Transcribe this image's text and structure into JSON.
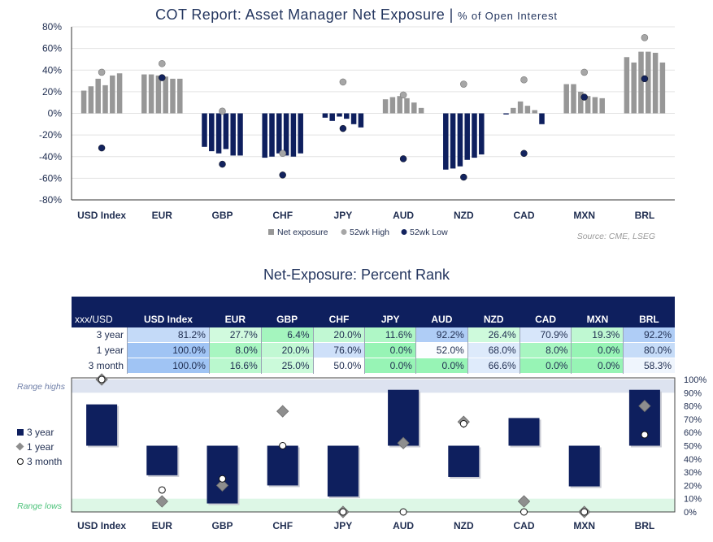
{
  "titles": {
    "chart1_main": "COT Report: Asset Manager Net Exposure |",
    "chart1_sub": "% of Open Interest",
    "chart2": "Net-Exposure: Percent Rank"
  },
  "colors": {
    "net_exposure": "#979797",
    "navy": "#0e1f5e",
    "high_marker": "#a6a6a6",
    "low_marker": "#13235e",
    "range_highs_band": "#dde3f0",
    "range_lows_band": "#ddf7e6"
  },
  "chart_data": [
    {
      "type": "bar",
      "title": "COT Report: Asset Manager Net Exposure | % of Open Interest",
      "ylabel": "",
      "ylim": [
        -80,
        80
      ],
      "yticks": [
        "80%",
        "60%",
        "40%",
        "20%",
        "0%",
        "-20%",
        "-40%",
        "-60%",
        "-80%"
      ],
      "grid": true,
      "categories": [
        "USD Index",
        "EUR",
        "GBP",
        "CHF",
        "JPY",
        "AUD",
        "NZD",
        "CAD",
        "MXN",
        "BRL"
      ],
      "series": [
        {
          "name": "Net exposure",
          "values": [
            [
              21,
              25,
              32,
              26,
              35,
              37
            ],
            [
              36,
              36,
              35,
              34,
              32,
              32
            ],
            [
              -31,
              -35,
              -37,
              -33,
              -39,
              -39
            ],
            [
              -41,
              -40,
              -37,
              -39,
              -40,
              -37
            ],
            [
              -4,
              -7,
              -3,
              -5,
              -10,
              -13
            ],
            [
              13,
              15,
              16,
              14,
              10,
              5
            ],
            [
              -52,
              -51,
              -49,
              -43,
              -41,
              -38
            ],
            [
              -1,
              5,
              11,
              7,
              3,
              -10
            ],
            [
              27,
              27,
              20,
              16,
              15,
              14
            ],
            [
              52,
              47,
              57,
              57,
              56,
              47
            ]
          ]
        },
        {
          "name": "52wk High",
          "values": [
            38,
            46,
            2,
            -37,
            29,
            17,
            27,
            31,
            38,
            70
          ]
        },
        {
          "name": "52wk Low",
          "values": [
            -32,
            33,
            -47,
            -57,
            -14,
            -42,
            -59,
            -37,
            15,
            32
          ]
        }
      ],
      "legend": [
        "Net exposure",
        "52wk High",
        "52wk Low"
      ],
      "legend_position": "bottom",
      "annotation": "Source: CME, LSEG"
    },
    {
      "type": "table",
      "corner_label": "xxx/USD",
      "columns": [
        "USD Index",
        "EUR",
        "GBP",
        "CHF",
        "JPY",
        "AUD",
        "NZD",
        "CAD",
        "MXN",
        "BRL"
      ],
      "rows": [
        {
          "label": "3 year",
          "values": [
            "81.2%",
            "27.7%",
            "6.4%",
            "20.0%",
            "11.6%",
            "92.2%",
            "26.4%",
            "70.9%",
            "19.3%",
            "92.2%"
          ]
        },
        {
          "label": "1 year",
          "values": [
            "100.0%",
            "8.0%",
            "20.0%",
            "76.0%",
            "0.0%",
            "52.0%",
            "68.0%",
            "8.0%",
            "0.0%",
            "80.0%"
          ]
        },
        {
          "label": "3 month",
          "values": [
            "100.0%",
            "16.6%",
            "25.0%",
            "50.0%",
            "0.0%",
            "0.0%",
            "66.6%",
            "0.0%",
            "0.0%",
            "58.3%"
          ]
        }
      ]
    },
    {
      "type": "bar",
      "title": "",
      "ylim": [
        0,
        100
      ],
      "yticks": [
        "100%",
        "90%",
        "80%",
        "70%",
        "60%",
        "50%",
        "40%",
        "30%",
        "20%",
        "10%",
        "0%"
      ],
      "baseline": 50,
      "categories": [
        "USD Index",
        "EUR",
        "GBP",
        "CHF",
        "JPY",
        "AUD",
        "NZD",
        "CAD",
        "MXN",
        "BRL"
      ],
      "series": [
        {
          "name": "3 year",
          "values": [
            81.2,
            27.7,
            6.4,
            20.0,
            11.6,
            92.2,
            26.4,
            70.9,
            19.3,
            92.2
          ]
        },
        {
          "name": "1 year",
          "values": [
            100.0,
            8.0,
            20.0,
            76.0,
            0.0,
            52.0,
            68.0,
            8.0,
            0.0,
            80.0
          ]
        },
        {
          "name": "3 month",
          "values": [
            100.0,
            16.6,
            25.0,
            50.0,
            0.0,
            0.0,
            66.6,
            0.0,
            0.0,
            58.3
          ]
        }
      ],
      "legend": [
        "3 year",
        "1 year",
        "3 month"
      ],
      "legend_position": "left",
      "bands": {
        "range_highs": "Range highs",
        "range_lows": "Range lows"
      },
      "band_limits": {
        "highs": [
          90,
          100
        ],
        "lows": [
          0,
          10
        ]
      }
    }
  ]
}
